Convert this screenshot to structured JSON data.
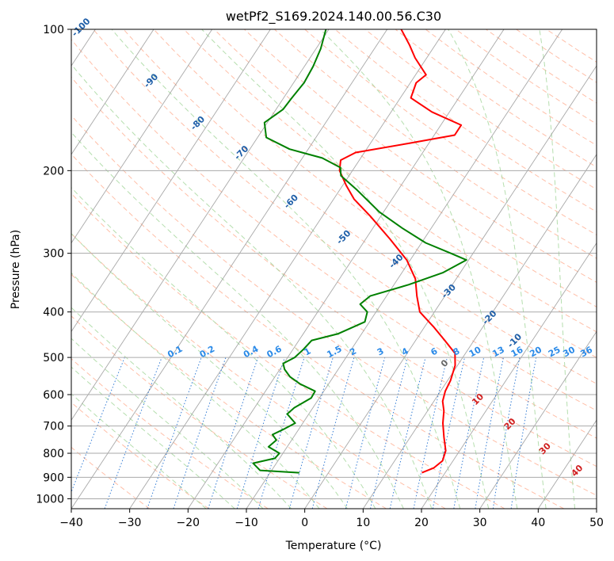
{
  "chart_data": {
    "type": "line",
    "chart_kind": "skew-T log-p",
    "title": "wetPf2_S169.2024.140.00.56.C30",
    "xlabel": "Temperature (°C)",
    "ylabel": "Pressure (hPa)",
    "xlim": [
      -40,
      50
    ],
    "ylim": [
      1050,
      100
    ],
    "y_scale": "log",
    "grid": true,
    "x_ticks": [
      -40,
      -30,
      -20,
      -10,
      0,
      10,
      20,
      30,
      40,
      50
    ],
    "x_tick_labels": [
      "−40",
      "−30",
      "−20",
      "−10",
      "0",
      "10",
      "20",
      "30",
      "40",
      "50"
    ],
    "y_ticks": [
      100,
      200,
      300,
      400,
      500,
      600,
      700,
      800,
      900,
      1000
    ],
    "y_tick_labels": [
      "100",
      "200",
      "300",
      "400",
      "500",
      "600",
      "700",
      "800",
      "900",
      "1000"
    ],
    "skew_deg_per_decade": 53,
    "series": [
      {
        "role": "temperature",
        "color": "#ff0000",
        "points": [
          [
            880,
            16.0
          ],
          [
            860,
            17.5
          ],
          [
            830,
            18.2
          ],
          [
            790,
            17.6
          ],
          [
            740,
            15.8
          ],
          [
            690,
            14.0
          ],
          [
            650,
            12.8
          ],
          [
            620,
            11.5
          ],
          [
            590,
            10.8
          ],
          [
            560,
            10.5
          ],
          [
            520,
            9.6
          ],
          [
            490,
            8.2
          ],
          [
            460,
            5.0
          ],
          [
            430,
            1.5
          ],
          [
            400,
            -2.5
          ],
          [
            370,
            -4.8
          ],
          [
            340,
            -7.0
          ],
          [
            310,
            -10.6
          ],
          [
            280,
            -15.8
          ],
          [
            250,
            -21.8
          ],
          [
            230,
            -26.5
          ],
          [
            215,
            -29.4
          ],
          [
            200,
            -32.2
          ],
          [
            190,
            -33.2
          ],
          [
            183,
            -31.5
          ],
          [
            175,
            -23.5
          ],
          [
            168,
            -16.5
          ],
          [
            160,
            -16.5
          ],
          [
            150,
            -23.0
          ],
          [
            140,
            -28.2
          ],
          [
            130,
            -29.0
          ],
          [
            125,
            -28.2
          ],
          [
            115,
            -32.0
          ],
          [
            108,
            -34.4
          ],
          [
            100,
            -37.6
          ]
        ]
      },
      {
        "role": "dewpoint",
        "color": "#008000",
        "points": [
          [
            880,
            -5.0
          ],
          [
            870,
            -12.0
          ],
          [
            840,
            -14.0
          ],
          [
            820,
            -10.8
          ],
          [
            800,
            -10.6
          ],
          [
            775,
            -13.2
          ],
          [
            750,
            -12.6
          ],
          [
            730,
            -13.9
          ],
          [
            710,
            -12.5
          ],
          [
            690,
            -11.3
          ],
          [
            660,
            -13.7
          ],
          [
            640,
            -13.2
          ],
          [
            610,
            -11.4
          ],
          [
            590,
            -11.5
          ],
          [
            570,
            -14.8
          ],
          [
            550,
            -17.4
          ],
          [
            530,
            -19.2
          ],
          [
            515,
            -20.1
          ],
          [
            500,
            -18.8
          ],
          [
            480,
            -18.2
          ],
          [
            460,
            -17.8
          ],
          [
            445,
            -14.0
          ],
          [
            420,
            -10.8
          ],
          [
            400,
            -11.5
          ],
          [
            385,
            -13.6
          ],
          [
            370,
            -12.8
          ],
          [
            350,
            -7.5
          ],
          [
            330,
            -3.0
          ],
          [
            310,
            -0.4
          ],
          [
            300,
            -3.8
          ],
          [
            285,
            -9.3
          ],
          [
            265,
            -15.0
          ],
          [
            245,
            -20.7
          ],
          [
            220,
            -27.0
          ],
          [
            205,
            -31.4
          ],
          [
            197,
            -32.4
          ],
          [
            188,
            -36.6
          ],
          [
            180,
            -43.2
          ],
          [
            170,
            -48.5
          ],
          [
            158,
            -50.5
          ],
          [
            148,
            -48.8
          ],
          [
            140,
            -48.6
          ],
          [
            130,
            -48.2
          ],
          [
            120,
            -48.5
          ],
          [
            110,
            -49.2
          ],
          [
            100,
            -50.5
          ]
        ]
      }
    ],
    "annotations": {
      "dry_adiabats": [
        "-100",
        "-90",
        "-80",
        "-70",
        "-60",
        "-50",
        "-40",
        "-30",
        "-20",
        "-10"
      ],
      "moist_adiabats": [
        "0",
        "10",
        "20",
        "30",
        "40"
      ],
      "mixing_ratio": [
        "0.1",
        "0.2",
        "0.4",
        "0.6",
        "1",
        "1.5",
        "2",
        "3",
        "4",
        "6",
        "8",
        "10",
        "13",
        "16",
        "20",
        "25",
        "30",
        "36"
      ]
    }
  }
}
